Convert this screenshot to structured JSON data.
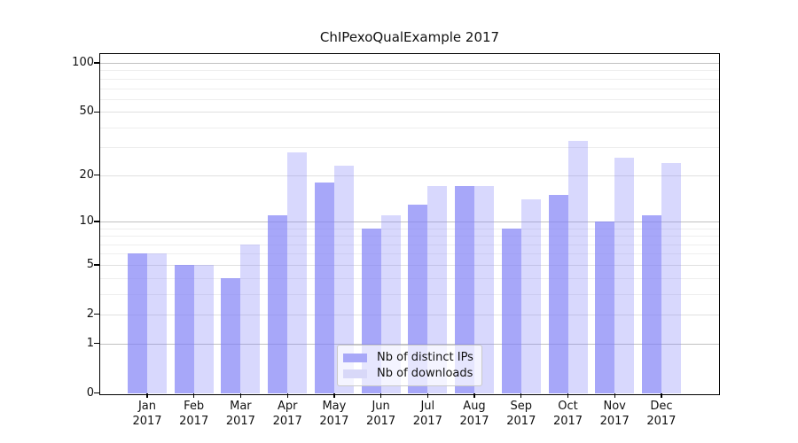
{
  "chart_data": {
    "type": "bar",
    "title": "ChIPexoQualExample 2017",
    "x_tick_months": [
      "Jan",
      "Feb",
      "Mar",
      "Apr",
      "May",
      "Jun",
      "Jul",
      "Aug",
      "Sep",
      "Oct",
      "Nov",
      "Dec"
    ],
    "x_tick_year": "2017",
    "series": [
      {
        "name": "Nb of distinct IPs",
        "color": "rgba(128,128,247,0.69)",
        "legend_color": "#a8a8f8",
        "values": [
          6,
          5,
          4,
          11,
          18,
          9,
          13,
          17,
          9,
          15,
          10,
          11
        ]
      },
      {
        "name": "Nb of downloads",
        "color": "rgba(128,128,247,0.31)",
        "legend_color": "#d8d8f8",
        "values": [
          6,
          5,
          7,
          28,
          23,
          11,
          17,
          17,
          14,
          33,
          26,
          24
        ]
      }
    ],
    "yscale": "log1p",
    "ylim": [
      0,
      113
    ],
    "yticks": [
      100,
      50,
      20,
      10,
      5,
      2,
      1,
      0
    ],
    "gridlines": {
      "strong": [
        1,
        10,
        100
      ],
      "medium": [
        2,
        5,
        20,
        50
      ],
      "light": [
        3,
        4,
        6,
        7,
        8,
        9,
        30,
        40,
        60,
        70,
        80,
        90
      ]
    },
    "legend_position": "bottom-center",
    "grid_colors": {
      "strong": "#c1c1c1",
      "medium": "#e0e0e0",
      "light": "#eeeeee"
    },
    "axis_color": "#000000",
    "text_color": "#111111",
    "background": "#ffffff"
  }
}
